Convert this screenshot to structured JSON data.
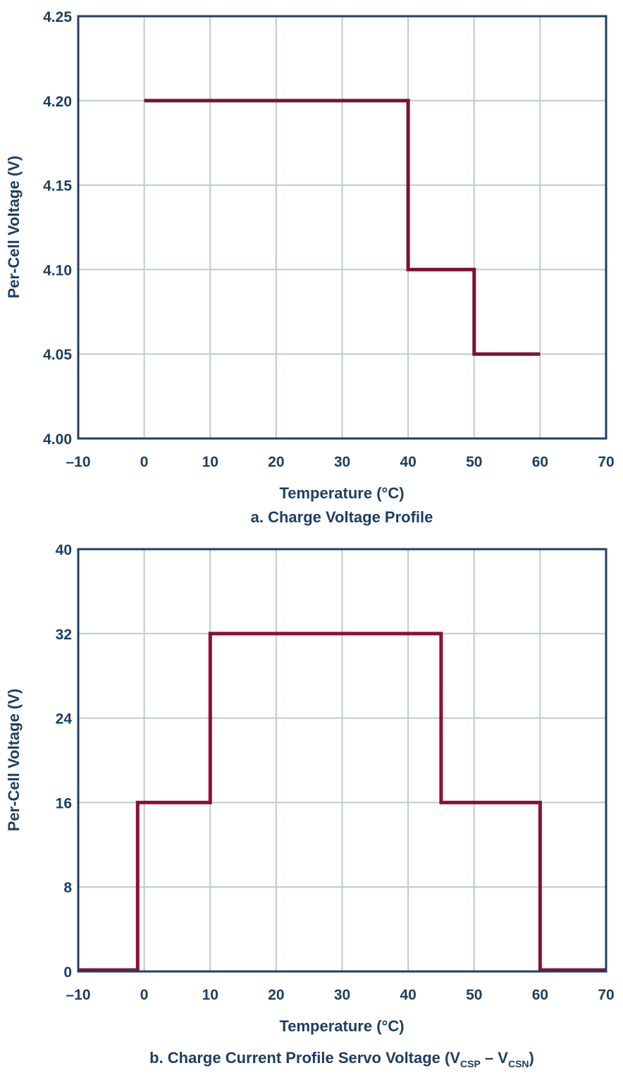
{
  "chart_data": [
    {
      "type": "line",
      "step": true,
      "xlabel": "Temperature (°C)",
      "ylabel": "Per-Cell Voltage (V)",
      "caption": "a. Charge Voltage Profile",
      "xlim": [
        -10,
        70
      ],
      "ylim": [
        4.0,
        4.25
      ],
      "xticks": [
        "–10",
        "0",
        "10",
        "20",
        "30",
        "40",
        "50",
        "60",
        "70"
      ],
      "yticks": [
        "4.00",
        "4.05",
        "4.10",
        "4.15",
        "4.20",
        "4.25"
      ],
      "grid": true,
      "line_color": "#7d1230",
      "series": [
        {
          "x": [
            0,
            40,
            40,
            50,
            50,
            60
          ],
          "y": [
            4.2,
            4.2,
            4.1,
            4.1,
            4.05,
            4.05
          ]
        }
      ]
    },
    {
      "type": "line",
      "step": true,
      "xlabel": "Temperature (°C)",
      "ylabel": "Per-Cell Voltage (V)",
      "caption_main": "b. Charge Current Profile Servo Voltage (V",
      "caption_sub1": "CSP",
      "caption_mid": " – V",
      "caption_sub2": "CSN",
      "caption_end": ")",
      "xlim": [
        -10,
        70
      ],
      "ylim": [
        0,
        40
      ],
      "xticks": [
        "–10",
        "0",
        "10",
        "20",
        "30",
        "40",
        "50",
        "60",
        "70"
      ],
      "yticks": [
        "0",
        "8",
        "16",
        "24",
        "32",
        "40"
      ],
      "grid": true,
      "line_color": "#8c0f35",
      "series": [
        {
          "x": [
            -10,
            -1,
            -1,
            10,
            10,
            45,
            45,
            60,
            60,
            70
          ],
          "y": [
            0,
            0,
            16,
            16,
            32,
            32,
            16,
            16,
            0,
            0
          ]
        }
      ]
    }
  ]
}
